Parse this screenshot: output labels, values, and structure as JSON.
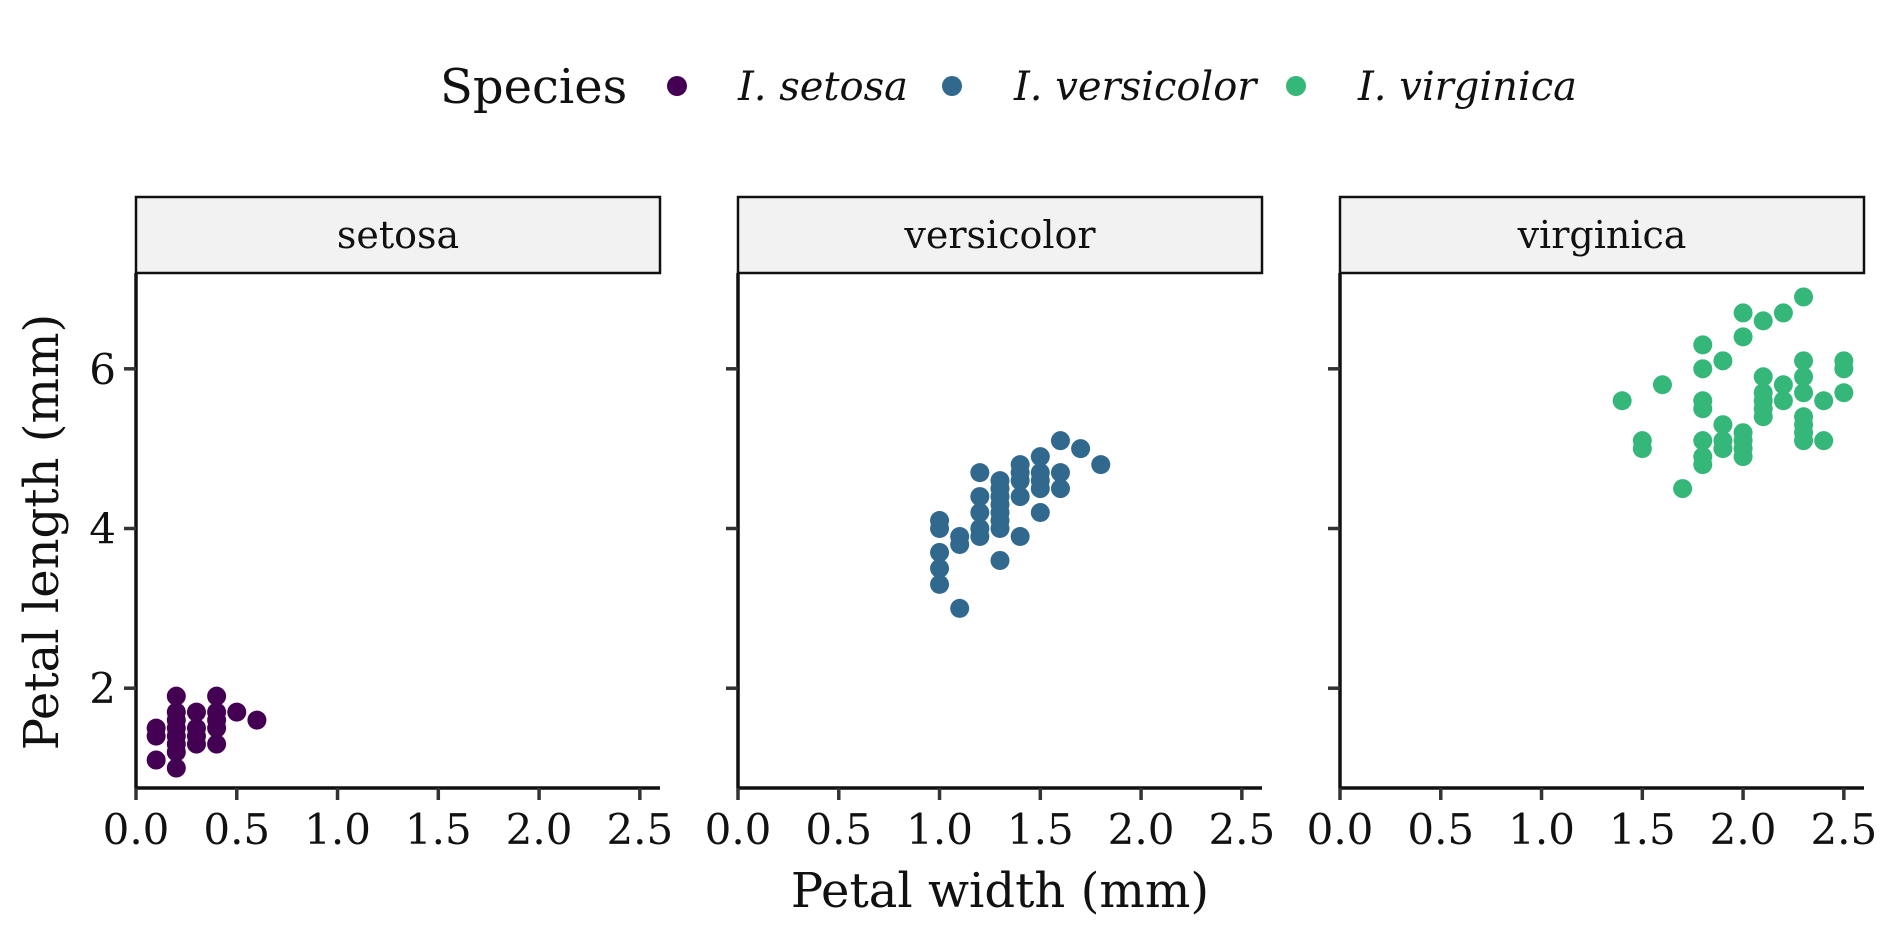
{
  "chart_data": {
    "type": "scatter",
    "xlabel": "Petal width (mm)",
    "ylabel": "Petal length (mm)",
    "xlim": [
      0,
      2.6
    ],
    "ylim": [
      0.75,
      7.2
    ],
    "xticks": [
      "0.0",
      "0.5",
      "1.0",
      "1.5",
      "2.0",
      "2.5"
    ],
    "xtick_values": [
      0,
      0.5,
      1.0,
      1.5,
      2.0,
      2.5
    ],
    "yticks": [
      "2",
      "4",
      "6"
    ],
    "ytick_values": [
      2,
      4,
      6
    ],
    "grid": false,
    "legend": {
      "title": "Species",
      "placement": "top",
      "entries": [
        "I. setosa",
        "I. versicolor",
        "I. virginica"
      ]
    },
    "facets": [
      "setosa",
      "versicolor",
      "virginica"
    ],
    "series": [
      {
        "name": "I. setosa",
        "color": "#440154",
        "points": [
          [
            0.1,
            1.1
          ],
          [
            0.1,
            1.4
          ],
          [
            0.1,
            1.5
          ],
          [
            0.2,
            1.0
          ],
          [
            0.2,
            1.2
          ],
          [
            0.2,
            1.3
          ],
          [
            0.2,
            1.4
          ],
          [
            0.2,
            1.5
          ],
          [
            0.2,
            1.6
          ],
          [
            0.2,
            1.7
          ],
          [
            0.2,
            1.9
          ],
          [
            0.3,
            1.3
          ],
          [
            0.3,
            1.4
          ],
          [
            0.3,
            1.5
          ],
          [
            0.3,
            1.7
          ],
          [
            0.4,
            1.3
          ],
          [
            0.4,
            1.5
          ],
          [
            0.4,
            1.6
          ],
          [
            0.4,
            1.7
          ],
          [
            0.4,
            1.9
          ],
          [
            0.5,
            1.7
          ],
          [
            0.6,
            1.6
          ]
        ]
      },
      {
        "name": "I. versicolor",
        "color": "#31688E",
        "points": [
          [
            1.0,
            3.3
          ],
          [
            1.0,
            3.5
          ],
          [
            1.0,
            3.7
          ],
          [
            1.0,
            4.0
          ],
          [
            1.0,
            4.1
          ],
          [
            1.1,
            3.0
          ],
          [
            1.1,
            3.8
          ],
          [
            1.1,
            3.9
          ],
          [
            1.2,
            3.9
          ],
          [
            1.2,
            4.0
          ],
          [
            1.2,
            4.2
          ],
          [
            1.2,
            4.4
          ],
          [
            1.2,
            4.7
          ],
          [
            1.3,
            3.6
          ],
          [
            1.3,
            4.0
          ],
          [
            1.3,
            4.1
          ],
          [
            1.3,
            4.2
          ],
          [
            1.3,
            4.3
          ],
          [
            1.3,
            4.4
          ],
          [
            1.3,
            4.5
          ],
          [
            1.3,
            4.6
          ],
          [
            1.4,
            3.9
          ],
          [
            1.4,
            4.4
          ],
          [
            1.4,
            4.6
          ],
          [
            1.4,
            4.7
          ],
          [
            1.4,
            4.8
          ],
          [
            1.5,
            4.2
          ],
          [
            1.5,
            4.5
          ],
          [
            1.5,
            4.6
          ],
          [
            1.5,
            4.7
          ],
          [
            1.5,
            4.9
          ],
          [
            1.6,
            4.5
          ],
          [
            1.6,
            4.7
          ],
          [
            1.6,
            5.1
          ],
          [
            1.7,
            5.0
          ],
          [
            1.8,
            4.8
          ]
        ]
      },
      {
        "name": "I. virginica",
        "color": "#35B779",
        "points": [
          [
            1.4,
            5.6
          ],
          [
            1.5,
            5.0
          ],
          [
            1.5,
            5.1
          ],
          [
            1.6,
            5.8
          ],
          [
            1.7,
            4.5
          ],
          [
            1.8,
            4.8
          ],
          [
            1.8,
            4.9
          ],
          [
            1.8,
            5.1
          ],
          [
            1.8,
            5.5
          ],
          [
            1.8,
            5.6
          ],
          [
            1.8,
            6.0
          ],
          [
            1.8,
            6.3
          ],
          [
            1.9,
            5.0
          ],
          [
            1.9,
            5.1
          ],
          [
            1.9,
            5.3
          ],
          [
            1.9,
            6.1
          ],
          [
            2.0,
            4.9
          ],
          [
            2.0,
            5.0
          ],
          [
            2.0,
            5.1
          ],
          [
            2.0,
            5.2
          ],
          [
            2.0,
            6.4
          ],
          [
            2.0,
            6.7
          ],
          [
            2.1,
            5.4
          ],
          [
            2.1,
            5.5
          ],
          [
            2.1,
            5.6
          ],
          [
            2.1,
            5.7
          ],
          [
            2.1,
            5.9
          ],
          [
            2.1,
            6.6
          ],
          [
            2.2,
            5.6
          ],
          [
            2.2,
            5.8
          ],
          [
            2.2,
            6.7
          ],
          [
            2.3,
            5.1
          ],
          [
            2.3,
            5.2
          ],
          [
            2.3,
            5.3
          ],
          [
            2.3,
            5.4
          ],
          [
            2.3,
            5.7
          ],
          [
            2.3,
            5.9
          ],
          [
            2.3,
            6.1
          ],
          [
            2.3,
            6.9
          ],
          [
            2.4,
            5.1
          ],
          [
            2.4,
            5.6
          ],
          [
            2.5,
            5.7
          ],
          [
            2.5,
            6.0
          ],
          [
            2.5,
            6.1
          ]
        ]
      }
    ]
  }
}
